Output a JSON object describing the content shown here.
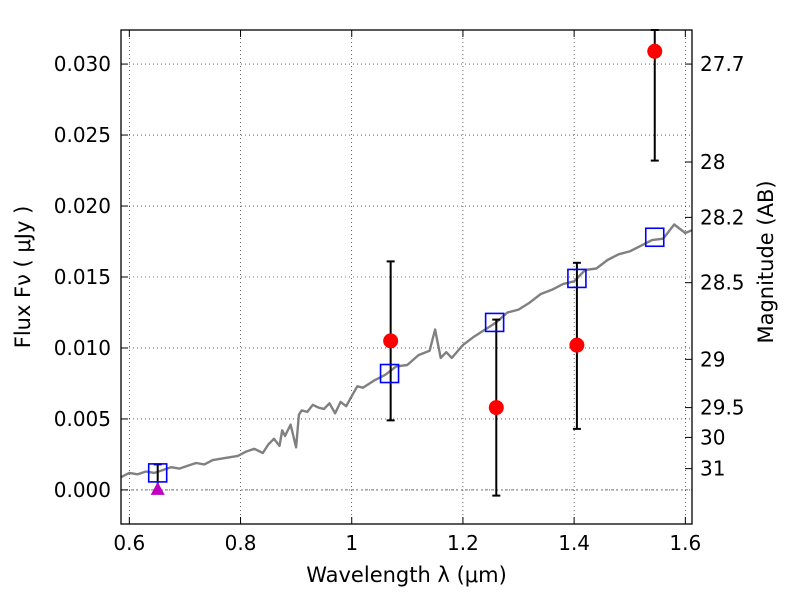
{
  "chart_data": {
    "type": "scatter",
    "xlabel": "Wavelength  λ (μm)",
    "ylabel": "Flux  Fν  ( μJy )",
    "ylabel2": "Magnitude (AB)",
    "xlim": [
      0.585,
      1.612
    ],
    "ylim": [
      -0.0024,
      0.0324
    ],
    "grid": true,
    "x_ticks": [
      0.6,
      0.8,
      1.0,
      1.2,
      1.4,
      1.6
    ],
    "x_tick_labels": [
      "0.6",
      "0.8",
      "1",
      "1.2",
      "1.4",
      "1.6"
    ],
    "y_ticks": [
      0.0,
      0.005,
      0.01,
      0.015,
      0.02,
      0.025,
      0.03
    ],
    "y_tick_labels": [
      "0.000",
      "0.005",
      "0.010",
      "0.015",
      "0.020",
      "0.025",
      "0.030"
    ],
    "mag_ticks": [
      {
        "label": "27.7",
        "flux": 0.03
      },
      {
        "label": "28",
        "flux": 0.0231
      },
      {
        "label": "28.2",
        "flux": 0.0192
      },
      {
        "label": "28.5",
        "flux": 0.0146
      },
      {
        "label": "29",
        "flux": 0.0092
      },
      {
        "label": "29.5",
        "flux": 0.0058
      },
      {
        "label": "30",
        "flux": 0.0037
      },
      {
        "label": "31",
        "flux": 0.0015
      }
    ],
    "series": [
      {
        "type": "line",
        "color": "#808080",
        "x": [
          0.585,
          0.6,
          0.615,
          0.63,
          0.645,
          0.66,
          0.675,
          0.69,
          0.705,
          0.72,
          0.735,
          0.75,
          0.765,
          0.78,
          0.795,
          0.81,
          0.825,
          0.84,
          0.85,
          0.86,
          0.87,
          0.875,
          0.88,
          0.89,
          0.9,
          0.905,
          0.91,
          0.92,
          0.93,
          0.94,
          0.95,
          0.96,
          0.97,
          0.98,
          0.99,
          1.0,
          1.01,
          1.02,
          1.04,
          1.06,
          1.08,
          1.1,
          1.12,
          1.14,
          1.15,
          1.16,
          1.17,
          1.18,
          1.2,
          1.22,
          1.24,
          1.26,
          1.28,
          1.3,
          1.32,
          1.34,
          1.36,
          1.38,
          1.4,
          1.42,
          1.44,
          1.46,
          1.48,
          1.5,
          1.52,
          1.54,
          1.56,
          1.58,
          1.6,
          1.612
        ],
        "y": [
          0.0009,
          0.0012,
          0.0011,
          0.0013,
          0.0012,
          0.0014,
          0.0016,
          0.0015,
          0.0017,
          0.0019,
          0.0018,
          0.0021,
          0.0022,
          0.0023,
          0.0024,
          0.0027,
          0.0029,
          0.0026,
          0.0032,
          0.0036,
          0.0031,
          0.0042,
          0.0038,
          0.0046,
          0.003,
          0.0053,
          0.0056,
          0.0055,
          0.006,
          0.0058,
          0.0057,
          0.0061,
          0.0054,
          0.0062,
          0.0059,
          0.0066,
          0.0073,
          0.0072,
          0.0077,
          0.0081,
          0.0087,
          0.0088,
          0.0095,
          0.0098,
          0.0113,
          0.0093,
          0.0097,
          0.0093,
          0.0102,
          0.0108,
          0.0113,
          0.0118,
          0.0125,
          0.0127,
          0.0132,
          0.0138,
          0.0141,
          0.0145,
          0.0147,
          0.0155,
          0.0156,
          0.0162,
          0.0166,
          0.0168,
          0.0172,
          0.0176,
          0.0177,
          0.0187,
          0.0181,
          0.0183
        ]
      },
      {
        "type": "scatter",
        "marker": "square-open",
        "color": "#0000ff",
        "x": [
          0.651,
          1.068,
          1.257,
          1.405,
          1.545
        ],
        "y": [
          0.0012,
          0.0082,
          0.0118,
          0.0149,
          0.0178
        ]
      },
      {
        "type": "scatter",
        "marker": "circle",
        "color": "#ff0000",
        "x": [
          1.07,
          1.26,
          1.405,
          1.545
        ],
        "y": [
          0.0105,
          0.0058,
          0.0102,
          0.0309
        ],
        "yerr_low": [
          0.0049,
          -0.0004,
          0.0043,
          0.0232
        ],
        "yerr_high": [
          0.0161,
          0.012,
          0.016,
          0.0324
        ]
      },
      {
        "type": "scatter",
        "marker": "triangle-up",
        "color": "#bf00bf",
        "x": [
          0.651
        ],
        "y": [
          0.0
        ],
        "yerr_high": [
          0.0018
        ]
      }
    ]
  }
}
